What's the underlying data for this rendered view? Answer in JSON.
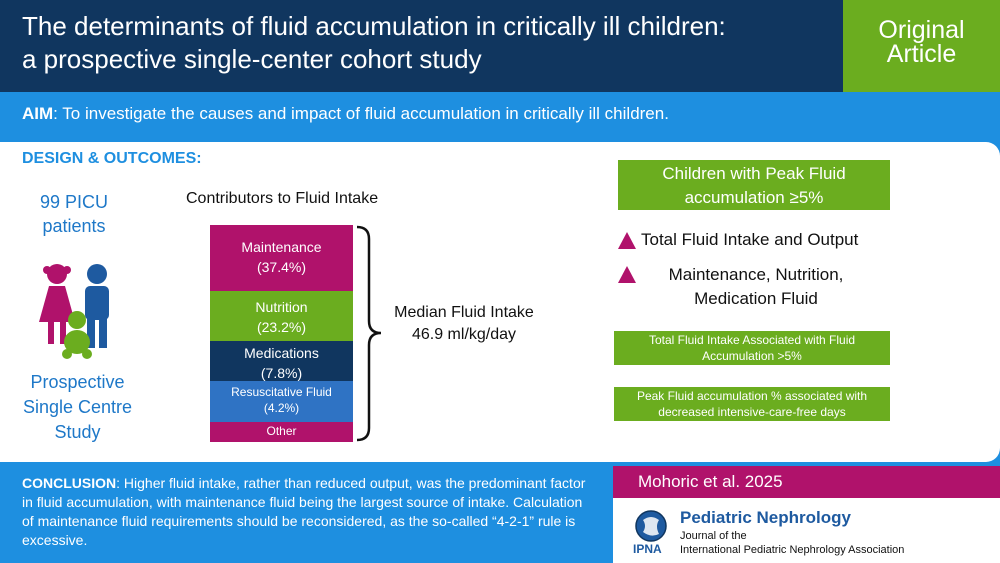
{
  "header": {
    "title_line1": "The determinants of fluid accumulation in critically ill children:",
    "title_line2": "a prospective single-center cohort study",
    "badge_line1": "Original",
    "badge_line2": "Article"
  },
  "aim": {
    "label": "AIM",
    "text": ": To investigate the causes and impact of fluid accumulation in critically ill children."
  },
  "design": {
    "label": "DESIGN & OUTCOMES:",
    "patients_line1": "99 PICU",
    "patients_line2": "patients",
    "study_line1": "Prospective",
    "study_line2": "Single Centre",
    "study_line3": "Study"
  },
  "contributors": {
    "title": "Contributors to Fluid Intake",
    "maintenance": "Maintenance",
    "maintenance_pct": "(37.4%)",
    "nutrition": "Nutrition",
    "nutrition_pct": "(23.2%)",
    "medications": "Medications",
    "medications_pct": "(7.8%)",
    "resuscitative": "Resuscitative Fluid",
    "resuscitative_pct": "(4.2%)",
    "other": "Other",
    "median_line1": "Median Fluid Intake",
    "median_line2": "46.9 ml/kg/day"
  },
  "findings": {
    "box_line1": "Children with Peak Fluid",
    "box_line2": "accumulation ≥5%",
    "item1": "Total Fluid Intake and Output",
    "item2_line1": "Maintenance, Nutrition,",
    "item2_line2": "Medication Fluid",
    "result1_line1": "Total Fluid Intake Associated with Fluid",
    "result1_line2": "Accumulation >5%",
    "result2_line1": "Peak Fluid accumulation % associated with",
    "result2_line2": "decreased intensive-care-free days"
  },
  "conclusion": {
    "label": "CONCLUSION",
    "text": ": Higher fluid intake, rather than reduced output, was the predominant factor in fluid accumulation, with maintenance fluid being the largest source of intake. Calculation of maintenance fluid requirements should be reconsidered, as the so-called “4-2-1” rule is excessive."
  },
  "citation": {
    "authors": "Mohoric et al. 2025",
    "journal_name": "Pediatric Nephrology",
    "journal_sub1": "Journal of the",
    "journal_sub2": "International Pediatric Nephrology Association",
    "logo_text": "IPNA"
  },
  "colors": {
    "navy": "#10365f",
    "blue": "#1e8fe0",
    "green": "#6bad1f",
    "magenta": "#b0126b"
  }
}
